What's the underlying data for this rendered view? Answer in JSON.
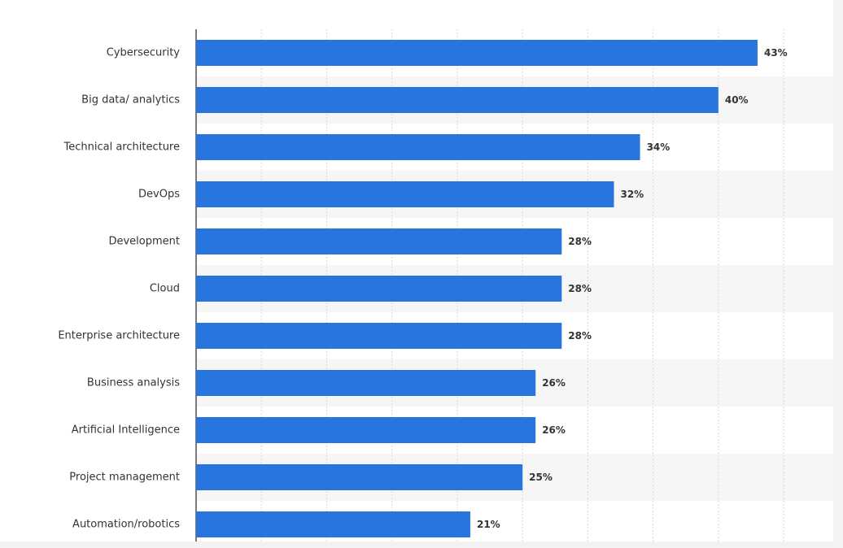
{
  "chart_data": {
    "type": "bar",
    "orientation": "horizontal",
    "categories": [
      "Cybersecurity",
      "Big data/ analytics",
      "Technical architecture",
      "DevOps",
      "Development",
      "Cloud",
      "Enterprise architecture",
      "Business analysis",
      "Artificial Intelligence",
      "Project management",
      "Automation/robotics"
    ],
    "values": [
      43,
      40,
      34,
      32,
      28,
      28,
      28,
      26,
      26,
      25,
      21
    ],
    "value_labels": [
      "43%",
      "40%",
      "34%",
      "32%",
      "28%",
      "28%",
      "28%",
      "26%",
      "26%",
      "25%",
      "21%"
    ],
    "xlim": [
      0,
      50
    ],
    "grid": true,
    "bar_color": "#2876dd",
    "alt_row_color": "#f6f6f6"
  }
}
